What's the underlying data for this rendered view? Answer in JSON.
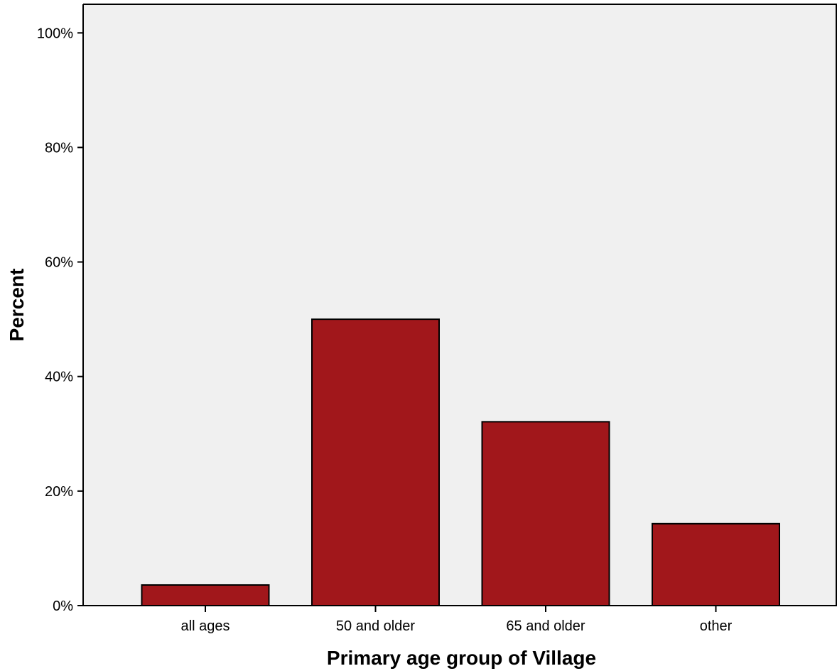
{
  "chart_data": {
    "type": "bar",
    "categories": [
      "all ages",
      "50 and older",
      "65 and older",
      "other"
    ],
    "values": [
      3.6,
      50.0,
      32.1,
      14.3
    ],
    "xlabel": "Primary age group of Village",
    "ylabel": "Percent",
    "ylim": [
      0,
      105
    ],
    "yticks": [
      0,
      20,
      40,
      60,
      80,
      100
    ],
    "ytick_labels": [
      "0%",
      "20%",
      "40%",
      "60%",
      "80%",
      "100%"
    ],
    "grid": false,
    "colors": {
      "bar": "#a1171b",
      "plot_bg": "#f0f0f0"
    }
  }
}
